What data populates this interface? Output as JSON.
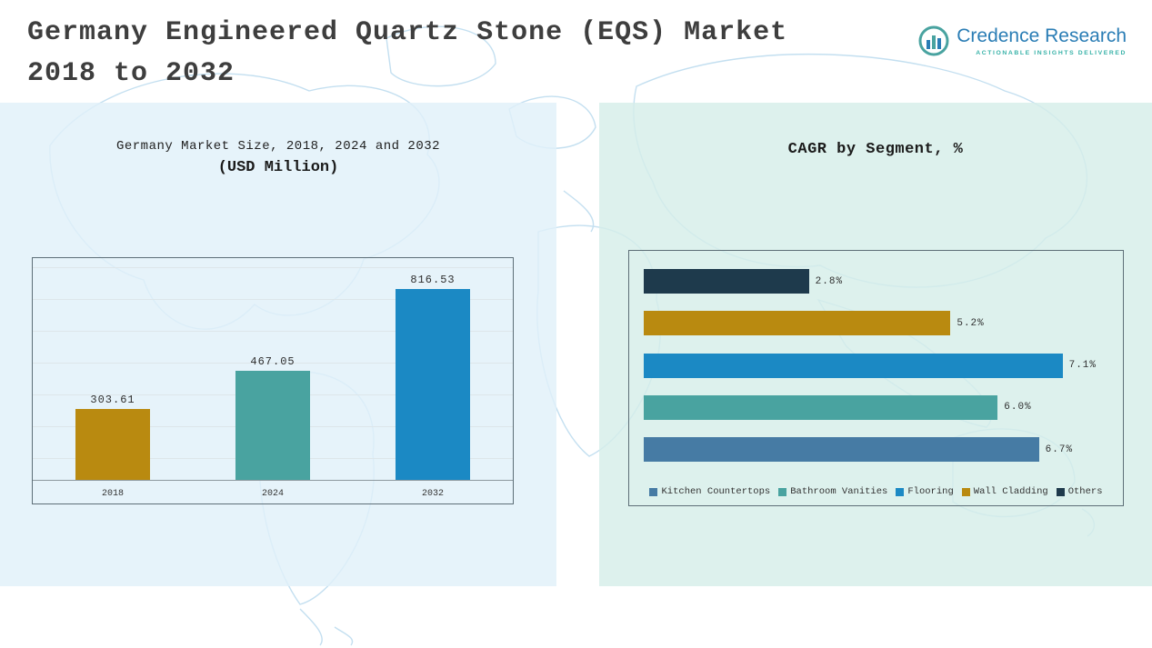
{
  "header": {
    "title_line1": "Germany Engineered Quartz Stone (EQS) Market",
    "title_line2": "2018 to 2032",
    "logo": {
      "name": "Credence Research",
      "tagline": "Actionable Insights Delivered"
    }
  },
  "colors": {
    "gold": "#b98a10",
    "teal": "#49a3a0",
    "blue": "#1b89c4",
    "navy": "#1e3a4c",
    "steel_blue": "#467ba4",
    "left_panel_bg": "#e1f0f9",
    "right_panel_bg": "#d5eee9"
  },
  "chart_data": [
    {
      "type": "bar",
      "title": "Germany Market Size, 2018, 2024 and 2032",
      "subtitle": "(USD Million)",
      "categories": [
        "2018",
        "2024",
        "2032"
      ],
      "values": [
        303.61,
        467.05,
        816.53
      ],
      "value_labels": [
        "303.61",
        "467.05",
        "816.53"
      ],
      "bar_colors": [
        "#b98a10",
        "#49a3a0",
        "#1b89c4"
      ],
      "xlabel": "",
      "ylabel": "",
      "ylim": [
        0,
        950
      ],
      "grid": true
    },
    {
      "type": "bar-horizontal",
      "title": "CAGR by Segment, %",
      "categories_top_to_bottom": [
        "Others",
        "Wall Cladding",
        "Flooring",
        "Bathroom Vanities",
        "Kitchen Countertops"
      ],
      "values": [
        2.8,
        5.2,
        7.1,
        6.0,
        6.7
      ],
      "value_labels": [
        "2.8%",
        "5.2%",
        "7.1%",
        "6.0%",
        "6.7%"
      ],
      "colors": [
        "#1e3a4c",
        "#b98a10",
        "#1b89c4",
        "#49a3a0",
        "#467ba4"
      ],
      "xlim": [
        0,
        8
      ],
      "grid": false,
      "legend_position": "bottom",
      "legend": [
        {
          "label": "Kitchen Countertops",
          "color": "#467ba4"
        },
        {
          "label": "Bathroom Vanities",
          "color": "#49a3a0"
        },
        {
          "label": "Flooring",
          "color": "#1b89c4"
        },
        {
          "label": "Wall Cladding",
          "color": "#b98a10"
        },
        {
          "label": "Others",
          "color": "#1e3a4c"
        }
      ]
    }
  ]
}
